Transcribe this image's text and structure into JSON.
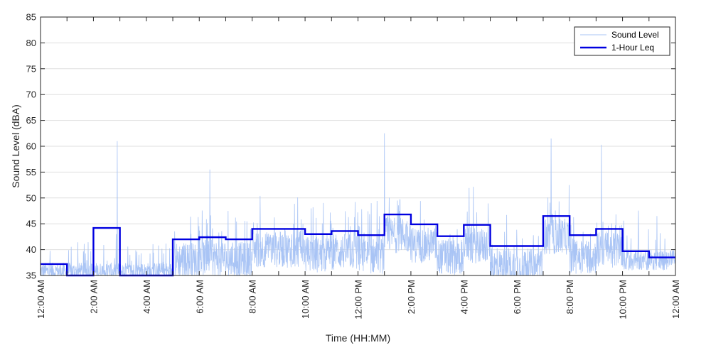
{
  "chart_data": {
    "type": "line",
    "title": "",
    "xlabel": "Time (HH:MM)",
    "ylabel": "Sound Level (dBA)",
    "xlim": [
      0,
      24
    ],
    "ylim": [
      35,
      85
    ],
    "x_tick_hours": [
      0,
      2,
      4,
      6,
      8,
      10,
      12,
      14,
      16,
      18,
      20,
      22,
      24
    ],
    "x_tick_labels": [
      "12:00 AM",
      "2:00 AM",
      "4:00 AM",
      "6:00 AM",
      "8:00 AM",
      "10:00 AM",
      "12:00 PM",
      "2:00 PM",
      "4:00 PM",
      "6:00 PM",
      "8:00 PM",
      "10:00 PM",
      "12:00 AM"
    ],
    "y_ticks": [
      35,
      40,
      45,
      50,
      55,
      60,
      65,
      70,
      75,
      80,
      85
    ],
    "grid": "horizontal",
    "legend_position": "top-right",
    "series": [
      {
        "name": "Sound Level",
        "color": "#a9c4f5",
        "style": "thin noisy line",
        "notable_peaks": [
          {
            "hour": 2.9,
            "value": 61
          },
          {
            "hour": 13.0,
            "value": 62.5
          },
          {
            "hour": 19.3,
            "value": 61.5
          },
          {
            "hour": 21.2,
            "value": 60.3
          },
          {
            "hour": 12.5,
            "value": 49
          },
          {
            "hour": 6.4,
            "value": 55.5
          }
        ]
      },
      {
        "name": "1-Hour Leq",
        "color": "#0000e0",
        "style": "step",
        "hours": [
          0,
          1,
          2,
          3,
          4,
          5,
          6,
          7,
          8,
          9,
          10,
          11,
          12,
          13,
          14,
          15,
          16,
          17,
          18,
          19,
          20,
          21,
          22,
          23
        ],
        "values": [
          37.2,
          34,
          44.2,
          34,
          34,
          42.0,
          42.4,
          42.0,
          44.0,
          44.0,
          43.0,
          43.6,
          42.8,
          46.8,
          44.9,
          42.6,
          44.8,
          40.7,
          40.7,
          46.5,
          42.8,
          44.0,
          39.7,
          38.5
        ]
      }
    ]
  }
}
